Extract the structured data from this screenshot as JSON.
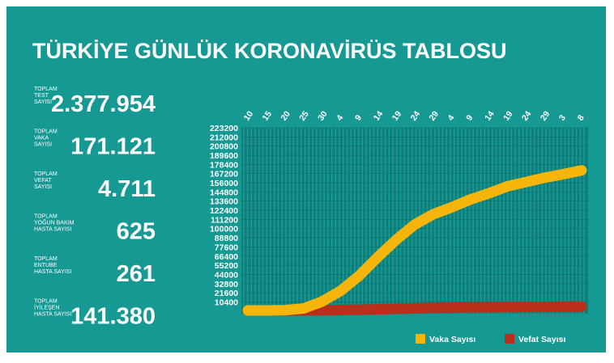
{
  "header": {
    "title": "TÜRKİYE GÜNLÜK KORONAVİRÜS TABLOSU"
  },
  "stats": [
    {
      "label": [
        "TOPLAM",
        "TEST",
        "SAYISI"
      ],
      "value": "2.377.954"
    },
    {
      "label": [
        "TOPLAM",
        "VAKA",
        "SAYISI"
      ],
      "value": "171.121"
    },
    {
      "label": [
        "TOPLAM",
        "VEFAT",
        "SAYISI"
      ],
      "value": "4.711"
    },
    {
      "label": [
        "TOPLAM",
        "YOĞUN BAKIM",
        "HASTA SAYISI"
      ],
      "value": "625"
    },
    {
      "label": [
        "TOPLAM",
        "ENTUBE",
        "HASTA SAYISI"
      ],
      "value": "261"
    },
    {
      "label": [
        "TOPLAM",
        "İYİLEŞEN",
        "HASTA SAYISI"
      ],
      "value": "141.380"
    }
  ],
  "chart_data": {
    "type": "line",
    "categories": [
      "10",
      "15",
      "20",
      "25",
      "30",
      "4",
      "9",
      "14",
      "19",
      "24",
      "29",
      "4",
      "9",
      "14",
      "19",
      "24",
      "29",
      "3",
      "8"
    ],
    "series": [
      {
        "name": "Vaka Sayısı",
        "color": "#f5b50a",
        "values": [
          0,
          18,
          359,
          2433,
          10827,
          23934,
          42282,
          65111,
          86306,
          104912,
          117589,
          126045,
          135569,
          143114,
          151615,
          156827,
          162120,
          166422,
          171121
        ]
      },
      {
        "name": "Vefat Sayısı",
        "color": "#b8301c",
        "values": [
          0,
          0,
          4,
          59,
          168,
          501,
          908,
          1403,
          2017,
          2600,
          3081,
          3397,
          3689,
          3952,
          4199,
          4340,
          4489,
          4609,
          4711
        ]
      }
    ],
    "ylim": [
      0,
      223200
    ],
    "yticks": [
      10400,
      21600,
      32800,
      44000,
      55200,
      66400,
      77600,
      88800,
      100000,
      111200,
      122400,
      133600,
      144800,
      156000,
      167200,
      178400,
      189600,
      200800,
      212000,
      223200
    ],
    "grid": true
  }
}
